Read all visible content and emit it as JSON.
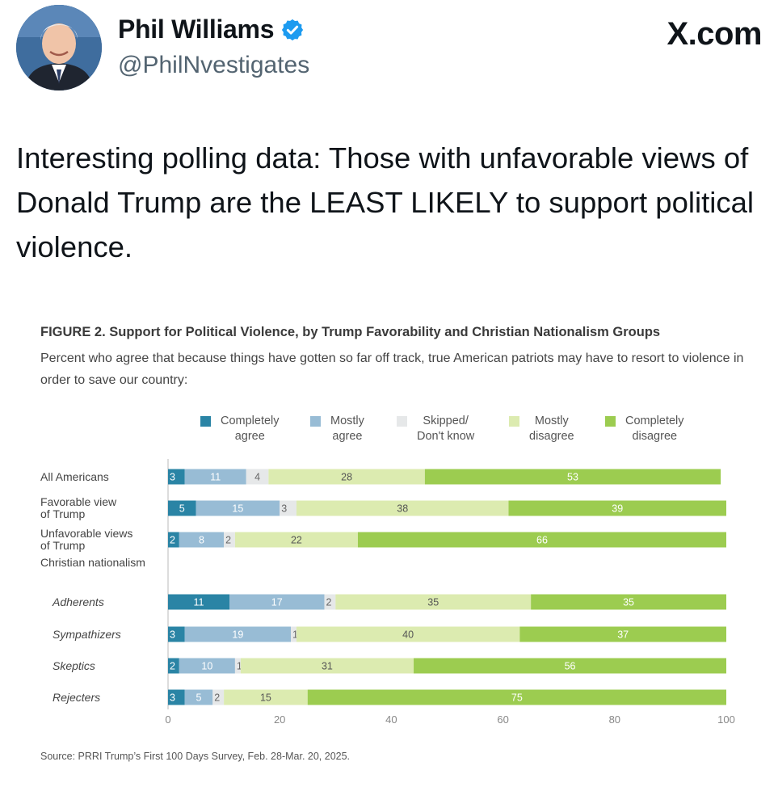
{
  "tweet": {
    "author_name": "Phil Williams",
    "handle": "@PhilNvestigates",
    "site": "X.com",
    "text": "Interesting polling data: Those with unfavorable views of Donald Trump are the LEAST LIKELY to support political violence."
  },
  "icons": {
    "verified": "verified-badge-icon",
    "avatar": "profile-photo"
  },
  "colors": {
    "verified_blue": "#1d9bf0",
    "completely_agree": "#2a84a5",
    "mostly_agree": "#98bcd5",
    "skipped": "#e6e8e9",
    "mostly_disagree": "#dcebb0",
    "completely_disagree": "#9ccc50"
  },
  "figure": {
    "title": "FIGURE 2.  Support for Political Violence, by Trump Favorability and Christian Nationalism Groups",
    "subtitle": "Percent who agree that because things have gotten so far off track, true American patriots may have to resort to violence in order to save our country:",
    "source": "Source: PRRI Trump’s First 100 Days Survey, Feb. 28-Mar. 20, 2025."
  },
  "chart_data": {
    "type": "bar",
    "orientation": "horizontal",
    "stacked": true,
    "title": "FIGURE 2.  Support for Political Violence, by Trump Favorability and Christian Nationalism Groups",
    "subtitle": "Percent who agree that because things have gotten so far off track, true American patriots may have to resort to violence in order to save our country:",
    "group_label": "Christian nationalism",
    "categories": [
      "All Americans",
      "Favorable view\nof Trump",
      "Unfavorable views\nof Trump",
      "Adherents",
      "Sympathizers",
      "Skeptics",
      "Rejecters"
    ],
    "series": [
      {
        "name": "Completely\nagree",
        "values": [
          3,
          5,
          2,
          11,
          3,
          2,
          3
        ]
      },
      {
        "name": "Mostly\nagree",
        "values": [
          11,
          15,
          8,
          17,
          19,
          10,
          5
        ]
      },
      {
        "name": "Skipped/\nDon't know",
        "values": [
          4,
          3,
          2,
          2,
          1,
          1,
          2
        ]
      },
      {
        "name": "Mostly\ndisagree",
        "values": [
          28,
          38,
          22,
          35,
          40,
          31,
          15
        ]
      },
      {
        "name": "Completely\ndisagree",
        "values": [
          53,
          39,
          66,
          35,
          37,
          56,
          75
        ]
      }
    ],
    "xlim": [
      0,
      100
    ],
    "xticks": [
      0,
      20,
      40,
      60,
      80,
      100
    ],
    "grid": false,
    "legend": "top"
  }
}
